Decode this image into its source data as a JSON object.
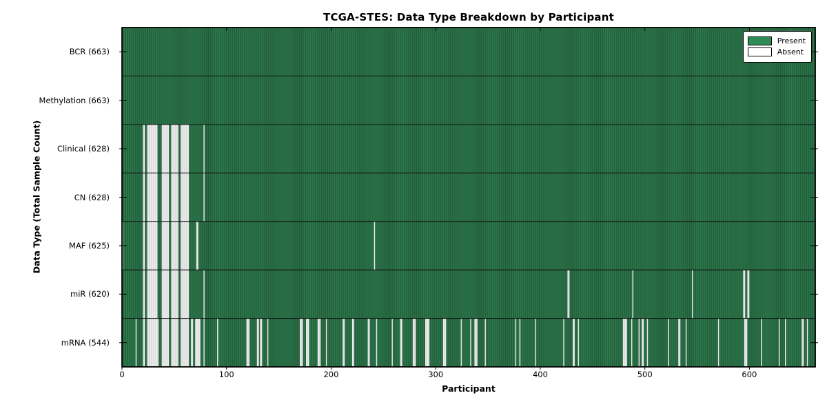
{
  "chart_data": {
    "type": "heatmap",
    "title": "TCGA-STES: Data Type Breakdown by Participant",
    "xlabel": "Participant",
    "ylabel": "Data Type (Total Sample Count)",
    "n_participants": 663,
    "x_range": [
      0,
      663
    ],
    "x_ticks": [
      0,
      100,
      200,
      300,
      400,
      500,
      600
    ],
    "grid": false,
    "legend_position": "upper right",
    "legend": [
      {
        "label": "Present",
        "swatch": "present"
      },
      {
        "label": "Absent",
        "swatch": "absent"
      }
    ],
    "colors": {
      "present": "#2e7d4f",
      "present_edge": "#1b4a2e",
      "present_swatch": "#2e8b57",
      "absent": "#f5f5f5",
      "absent_edge": "#c4c4c4",
      "separator": "#111111",
      "border": "#000000"
    },
    "rows": [
      {
        "label": "BCR (663)",
        "name": "BCR",
        "present_total": 663,
        "absent_ranges": []
      },
      {
        "label": "Methylation (663)",
        "name": "Methylation",
        "present_total": 663,
        "absent_ranges": []
      },
      {
        "label": "Clinical (628)",
        "name": "Clinical",
        "present_total": 628,
        "absent_ranges": [
          [
            20,
            21
          ],
          [
            24,
            33
          ],
          [
            38,
            44
          ],
          [
            47,
            53
          ],
          [
            56,
            63
          ],
          [
            78,
            78
          ]
        ]
      },
      {
        "label": "CN (628)",
        "name": "CN",
        "present_total": 628,
        "absent_ranges": [
          [
            20,
            21
          ],
          [
            24,
            33
          ],
          [
            38,
            44
          ],
          [
            47,
            53
          ],
          [
            56,
            63
          ],
          [
            78,
            78
          ]
        ]
      },
      {
        "label": "MAF (625)",
        "name": "MAF",
        "present_total": 625,
        "absent_ranges": [
          [
            0,
            0
          ],
          [
            20,
            21
          ],
          [
            24,
            33
          ],
          [
            38,
            44
          ],
          [
            47,
            53
          ],
          [
            56,
            63
          ],
          [
            71,
            72
          ],
          [
            241,
            241
          ]
        ]
      },
      {
        "label": "miR (620)",
        "name": "miR",
        "present_total": 620,
        "absent_ranges": [
          [
            20,
            21
          ],
          [
            24,
            33
          ],
          [
            38,
            44
          ],
          [
            47,
            53
          ],
          [
            56,
            63
          ],
          [
            78,
            78
          ],
          [
            426,
            427
          ],
          [
            488,
            488
          ],
          [
            545,
            545
          ],
          [
            594,
            595
          ],
          [
            598,
            599
          ]
        ]
      },
      {
        "label": "mRNA (544)",
        "name": "mRNA",
        "present_total": 544,
        "absent_ranges": [
          [
            13,
            13
          ],
          [
            20,
            21
          ],
          [
            24,
            34
          ],
          [
            38,
            44
          ],
          [
            47,
            53
          ],
          [
            56,
            63
          ],
          [
            66,
            67
          ],
          [
            70,
            74
          ],
          [
            78,
            78
          ],
          [
            91,
            91
          ],
          [
            119,
            121
          ],
          [
            129,
            130
          ],
          [
            132,
            133
          ],
          [
            139,
            139
          ],
          [
            170,
            172
          ],
          [
            176,
            178
          ],
          [
            187,
            189
          ],
          [
            195,
            195
          ],
          [
            211,
            212
          ],
          [
            220,
            221
          ],
          [
            235,
            236
          ],
          [
            243,
            243
          ],
          [
            258,
            258
          ],
          [
            266,
            267
          ],
          [
            278,
            280
          ],
          [
            290,
            293
          ],
          [
            307,
            309
          ],
          [
            324,
            324
          ],
          [
            333,
            333
          ],
          [
            337,
            339
          ],
          [
            347,
            347
          ],
          [
            376,
            376
          ],
          [
            380,
            380
          ],
          [
            395,
            395
          ],
          [
            422,
            422
          ],
          [
            431,
            432
          ],
          [
            436,
            436
          ],
          [
            479,
            482
          ],
          [
            487,
            487
          ],
          [
            494,
            494
          ],
          [
            497,
            498
          ],
          [
            502,
            502
          ],
          [
            522,
            522
          ],
          [
            532,
            533
          ],
          [
            539,
            539
          ],
          [
            570,
            570
          ],
          [
            595,
            597
          ],
          [
            611,
            611
          ],
          [
            628,
            628
          ],
          [
            634,
            634
          ],
          [
            650,
            651
          ],
          [
            655,
            655
          ]
        ]
      }
    ]
  }
}
